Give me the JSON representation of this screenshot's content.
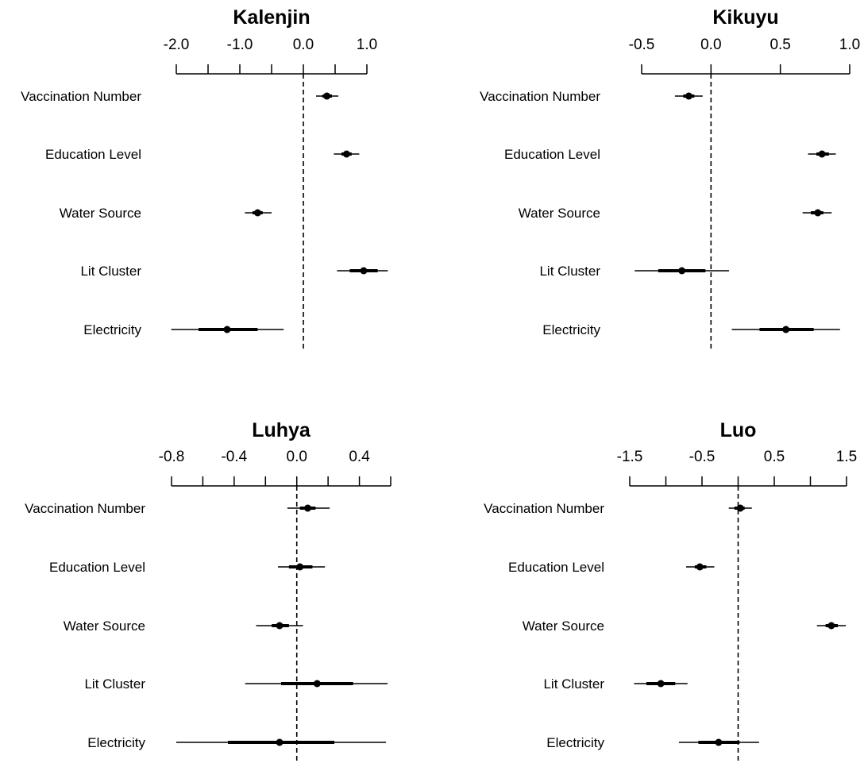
{
  "chart_data": [
    {
      "type": "dot-whisker",
      "title": "Kalenjin",
      "xlim": [
        -2.0,
        1.0
      ],
      "ticks": [
        -2.0,
        -1.5,
        -1.0,
        -0.5,
        0.0,
        0.5,
        1.0
      ],
      "tick_labels": [
        "-2.0",
        "-1.0",
        "0.0",
        "1.0"
      ],
      "reference_line": 0.0,
      "categories": [
        "Vaccination Number",
        "Education Level",
        "Water Source",
        "Lit Cluster",
        "Electricity"
      ],
      "estimates": [
        0.37,
        0.68,
        -0.72,
        0.95,
        -1.2
      ],
      "inner_interval": [
        [
          0.3,
          0.45
        ],
        [
          0.6,
          0.76
        ],
        [
          -0.8,
          -0.64
        ],
        [
          0.73,
          1.17
        ],
        [
          -1.65,
          -0.72
        ]
      ],
      "outer_interval": [
        [
          0.2,
          0.55
        ],
        [
          0.48,
          0.88
        ],
        [
          -0.92,
          -0.5
        ],
        [
          0.53,
          1.33
        ],
        [
          -2.08,
          -0.31
        ]
      ]
    },
    {
      "type": "dot-whisker",
      "title": "Kikuyu",
      "xlim": [
        -0.5,
        1.0
      ],
      "ticks": [
        -0.5,
        0.0,
        0.5,
        1.0
      ],
      "tick_labels": [
        "-0.5",
        "0.0",
        "0.5",
        "1.0"
      ],
      "reference_line": 0.0,
      "categories": [
        "Vaccination Number",
        "Education Level",
        "Water Source",
        "Lit Cluster",
        "Electricity"
      ],
      "estimates": [
        -0.16,
        0.8,
        0.77,
        -0.21,
        0.54
      ],
      "inner_interval": [
        [
          -0.2,
          -0.12
        ],
        [
          0.76,
          0.85
        ],
        [
          0.72,
          0.81
        ],
        [
          -0.38,
          -0.04
        ],
        [
          0.35,
          0.74
        ]
      ],
      "outer_interval": [
        [
          -0.26,
          -0.06
        ],
        [
          0.7,
          0.9
        ],
        [
          0.66,
          0.87
        ],
        [
          -0.55,
          0.13
        ],
        [
          0.15,
          0.93
        ]
      ]
    },
    {
      "type": "dot-whisker",
      "title": "Luhya",
      "xlim": [
        -0.8,
        0.6
      ],
      "ticks": [
        -0.8,
        -0.6,
        -0.4,
        -0.2,
        0.0,
        0.2,
        0.4,
        0.6
      ],
      "tick_labels": [
        "-0.8",
        "-0.4",
        "0.0",
        "0.4"
      ],
      "reference_line": 0.0,
      "categories": [
        "Vaccination Number",
        "Education Level",
        "Water Source",
        "Lit Cluster",
        "Electricity"
      ],
      "estimates": [
        0.07,
        0.02,
        -0.11,
        0.13,
        -0.11
      ],
      "inner_interval": [
        [
          0.02,
          0.12
        ],
        [
          -0.05,
          0.1
        ],
        [
          -0.16,
          -0.05
        ],
        [
          -0.1,
          0.36
        ],
        [
          -0.44,
          0.24
        ]
      ],
      "outer_interval": [
        [
          -0.06,
          0.21
        ],
        [
          -0.12,
          0.18
        ],
        [
          -0.26,
          0.04
        ],
        [
          -0.33,
          0.58
        ],
        [
          -0.77,
          0.57
        ]
      ]
    },
    {
      "type": "dot-whisker",
      "title": "Luo",
      "xlim": [
        -1.5,
        1.5
      ],
      "ticks": [
        -1.5,
        -1.0,
        -0.5,
        0.0,
        0.5,
        1.0,
        1.5
      ],
      "tick_labels": [
        "-1.5",
        "-0.5",
        "0.5",
        "1.5"
      ],
      "reference_line": 0.0,
      "categories": [
        "Vaccination Number",
        "Education Level",
        "Water Source",
        "Lit Cluster",
        "Electricity"
      ],
      "estimates": [
        0.03,
        -0.53,
        1.29,
        -1.07,
        -0.27
      ],
      "inner_interval": [
        [
          -0.05,
          0.09
        ],
        [
          -0.6,
          -0.44
        ],
        [
          1.21,
          1.38
        ],
        [
          -1.27,
          -0.87
        ],
        [
          -0.55,
          0.02
        ]
      ],
      "outer_interval": [
        [
          -0.13,
          0.19
        ],
        [
          -0.72,
          -0.33
        ],
        [
          1.09,
          1.49
        ],
        [
          -1.44,
          -0.7
        ],
        [
          -0.82,
          0.29
        ]
      ]
    }
  ]
}
